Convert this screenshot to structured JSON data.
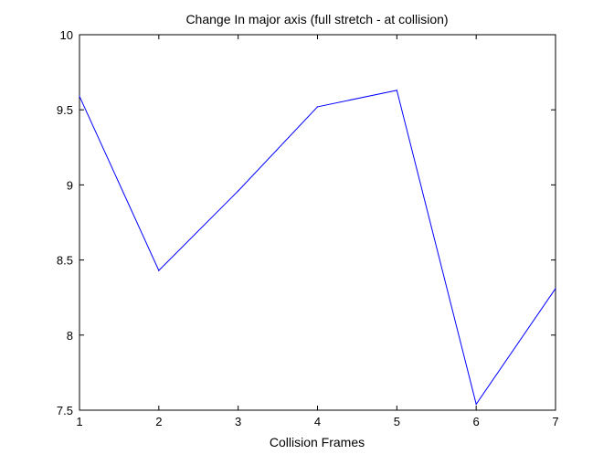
{
  "chart_data": {
    "type": "line",
    "title": "Change In major axis (full stretch - at collision)",
    "xlabel": "Collision Frames",
    "ylabel": "",
    "x": [
      1,
      2,
      3,
      4,
      5,
      6,
      7
    ],
    "series": [
      {
        "values": [
          9.59,
          8.43,
          8.96,
          9.52,
          9.63,
          7.54,
          8.31
        ],
        "color": "#0000ff"
      }
    ],
    "xlim": [
      1,
      7
    ],
    "ylim": [
      7.5,
      10
    ],
    "xticks": [
      "1",
      "2",
      "3",
      "4",
      "5",
      "6",
      "7"
    ],
    "yticks": [
      "7.5",
      "8",
      "8.5",
      "9",
      "9.5",
      "10"
    ],
    "grid": false,
    "legend": "none"
  }
}
